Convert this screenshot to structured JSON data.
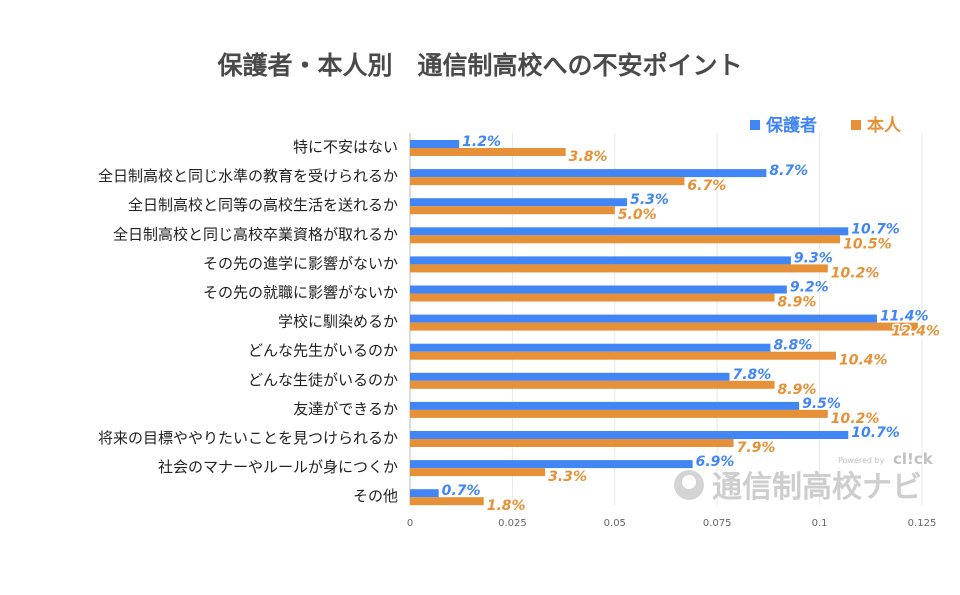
{
  "chart_data": {
    "type": "bar",
    "orientation": "horizontal",
    "title": "保護者・本人別　通信制高校への不安ポイント",
    "xlabel": "",
    "ylabel": "",
    "xlim": [
      0,
      0.125
    ],
    "ticks": [
      {
        "value": 0,
        "label": "0"
      },
      {
        "value": 0.025,
        "label": "0.025"
      },
      {
        "value": 0.05,
        "label": "0.05"
      },
      {
        "value": 0.075,
        "label": "0.075"
      },
      {
        "value": 0.1,
        "label": "0.1"
      },
      {
        "value": 0.125,
        "label": "0.125"
      }
    ],
    "legend_position": "top-right",
    "categories": [
      "特に不安はない",
      "全日制高校と同じ水準の教育を受けられるか",
      "全日制高校と同等の高校生活を送れるか",
      "全日制高校と同じ高校卒業資格が取れるか",
      "その先の進学に影響がないか",
      "その先の就職に影響がないか",
      "学校に馴染めるか",
      "どんな先生がいるのか",
      "どんな生徒がいるのか",
      "友達ができるか",
      "将来の目標ややりたいことを見つけられるか",
      "社会のマナーやルールが身につくか",
      "その他"
    ],
    "series": [
      {
        "name": "保護者",
        "color": "#4285f4",
        "values": [
          0.012,
          0.087,
          0.053,
          0.107,
          0.093,
          0.092,
          0.114,
          0.088,
          0.078,
          0.095,
          0.107,
          0.069,
          0.007
        ],
        "labels": [
          "1.2%",
          "8.7%",
          "5.3%",
          "10.7%",
          "9.3%",
          "9.2%",
          "11.4%",
          "8.8%",
          "7.8%",
          "9.5%",
          "10.7%",
          "6.9%",
          "0.7%"
        ]
      },
      {
        "name": "本人",
        "color": "#e69138",
        "values": [
          0.038,
          0.067,
          0.05,
          0.105,
          0.102,
          0.089,
          0.124,
          0.104,
          0.089,
          0.102,
          0.079,
          0.033,
          0.018
        ],
        "labels": [
          "3.8%",
          "6.7%",
          "5.0%",
          "10.5%",
          "10.2%",
          "8.9%",
          "12.4%",
          "10.4%",
          "8.9%",
          "10.2%",
          "7.9%",
          "3.3%",
          "1.8%"
        ]
      }
    ]
  },
  "watermark": {
    "text": "通信制高校ナビ",
    "powered_by": "Powered by",
    "brand": "cl!ck"
  }
}
